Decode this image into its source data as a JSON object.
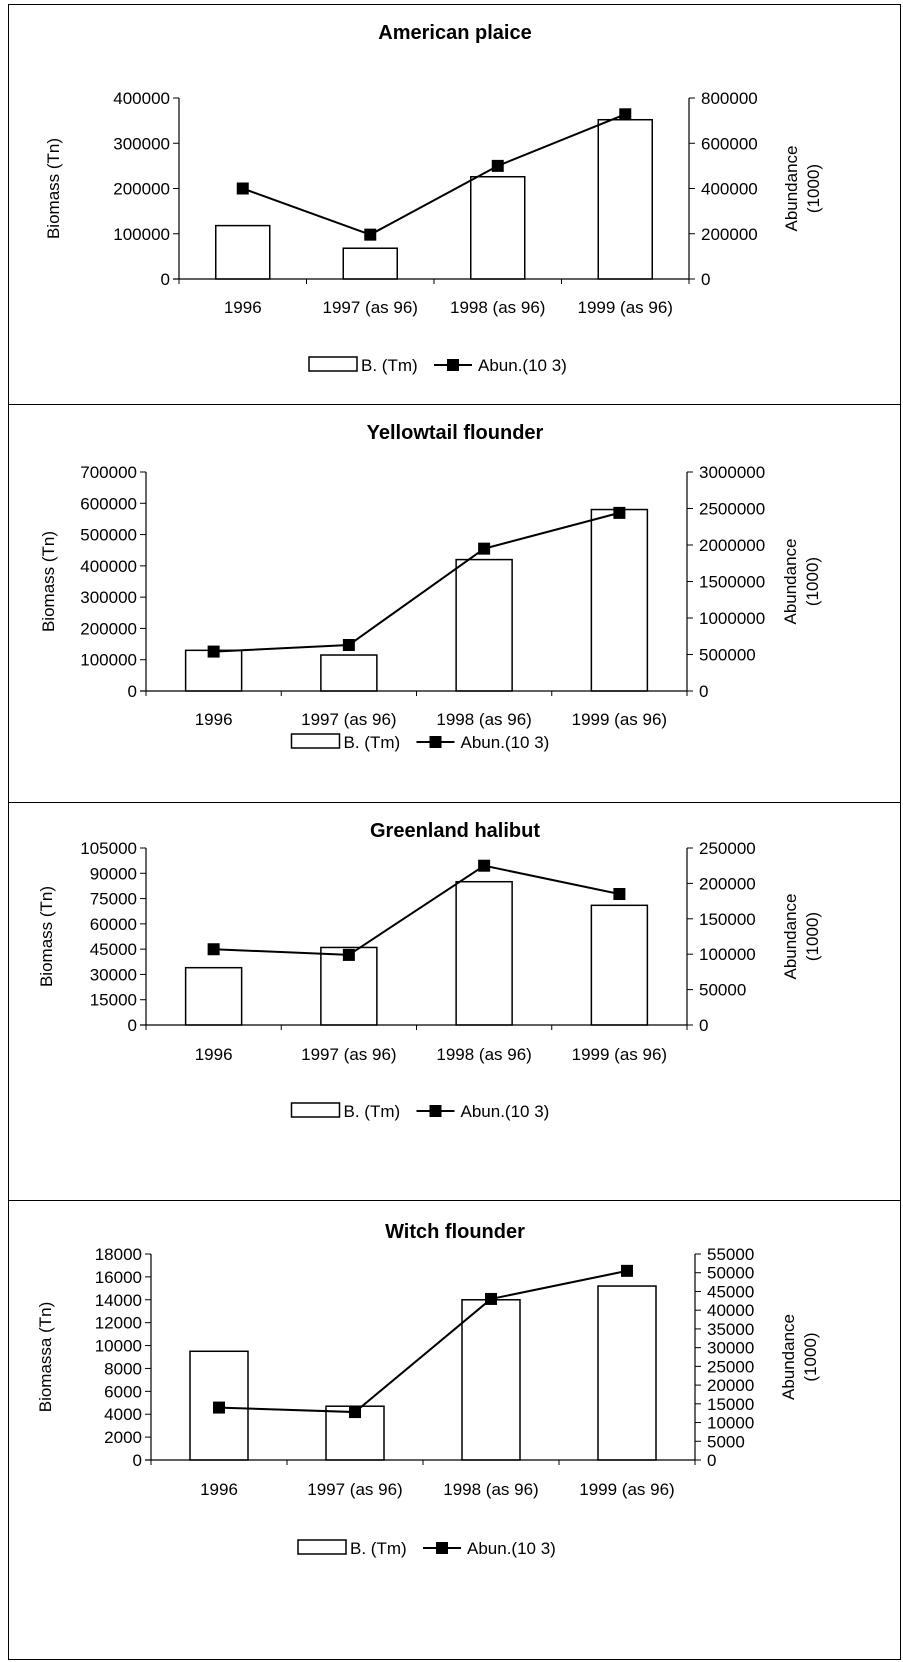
{
  "chart_data": [
    {
      "type": "bar",
      "title": "American plaice",
      "categories": [
        "1996",
        "1997 (as 96)",
        "1998 (as 96)",
        "1999 (as 96)"
      ],
      "series": [
        {
          "name": "B. (Tm)",
          "type": "bar",
          "axis": "left",
          "values": [
            118000,
            68000,
            226000,
            352000
          ]
        },
        {
          "name": "Abun.(10 3)",
          "type": "line",
          "axis": "right",
          "values": [
            400000,
            196000,
            500000,
            728000
          ]
        }
      ],
      "ylabel": "Biomass (Tn)",
      "y2label": [
        "Abundance",
        "(1000)"
      ],
      "ylim": [
        0,
        400000
      ],
      "y2lim": [
        0,
        800000
      ],
      "yticks": [
        0,
        100000,
        200000,
        300000,
        400000
      ],
      "y2ticks": [
        0,
        200000,
        400000,
        600000,
        800000
      ],
      "legend": "bottom"
    },
    {
      "type": "bar",
      "title": "Yellowtail flounder",
      "categories": [
        "1996",
        "1997 (as 96)",
        "1998 (as 96)",
        "1999 (as 96)"
      ],
      "series": [
        {
          "name": "B. (Tm)",
          "type": "bar",
          "axis": "left",
          "values": [
            130000,
            115000,
            420000,
            580000
          ]
        },
        {
          "name": "Abun.(10 3)",
          "type": "line",
          "axis": "right",
          "values": [
            540000,
            630000,
            1950000,
            2440000
          ]
        }
      ],
      "ylabel": "Biomass (Tn)",
      "y2label": [
        "Abundance",
        "(1000)"
      ],
      "ylim": [
        0,
        700000
      ],
      "y2lim": [
        0,
        3000000
      ],
      "yticks": [
        0,
        100000,
        200000,
        300000,
        400000,
        500000,
        600000,
        700000
      ],
      "y2ticks": [
        0,
        500000,
        1000000,
        1500000,
        2000000,
        2500000,
        3000000
      ],
      "legend": "bottom"
    },
    {
      "type": "bar",
      "title": "Greenland halibut",
      "categories": [
        "1996",
        "1997 (as 96)",
        "1998 (as 96)",
        "1999 (as 96)"
      ],
      "series": [
        {
          "name": "B. (Tm)",
          "type": "bar",
          "axis": "left",
          "values": [
            34000,
            46000,
            85000,
            71000
          ]
        },
        {
          "name": "Abun.(10 3)",
          "type": "line",
          "axis": "right",
          "values": [
            107000,
            99000,
            225000,
            185000
          ]
        }
      ],
      "ylabel": "Biomass (Tn)",
      "y2label": [
        "Abundance",
        "(1000)"
      ],
      "ylim": [
        0,
        105000
      ],
      "y2lim": [
        0,
        250000
      ],
      "yticks": [
        0,
        15000,
        30000,
        45000,
        60000,
        75000,
        90000,
        105000
      ],
      "y2ticks": [
        0,
        50000,
        100000,
        150000,
        200000,
        250000
      ],
      "legend": "bottom"
    },
    {
      "type": "bar",
      "title": "Witch flounder",
      "categories": [
        "1996",
        "1997 (as 96)",
        "1998 (as 96)",
        "1999 (as 96)"
      ],
      "series": [
        {
          "name": "B. (Tm)",
          "type": "bar",
          "axis": "left",
          "values": [
            9500,
            4700,
            14000,
            15200
          ]
        },
        {
          "name": "Abun.(10 3)",
          "type": "line",
          "axis": "right",
          "values": [
            14000,
            12800,
            43000,
            50500
          ]
        }
      ],
      "ylabel": "Biomassa  (Tn)",
      "y2label": [
        "Abundance",
        "(1000)"
      ],
      "ylim": [
        0,
        18000
      ],
      "y2lim": [
        0,
        55000
      ],
      "yticks": [
        0,
        2000,
        4000,
        6000,
        8000,
        10000,
        12000,
        14000,
        16000,
        18000
      ],
      "y2ticks": [
        0,
        5000,
        10000,
        15000,
        20000,
        25000,
        30000,
        35000,
        40000,
        45000,
        50000,
        55000
      ],
      "legend": "bottom"
    }
  ]
}
